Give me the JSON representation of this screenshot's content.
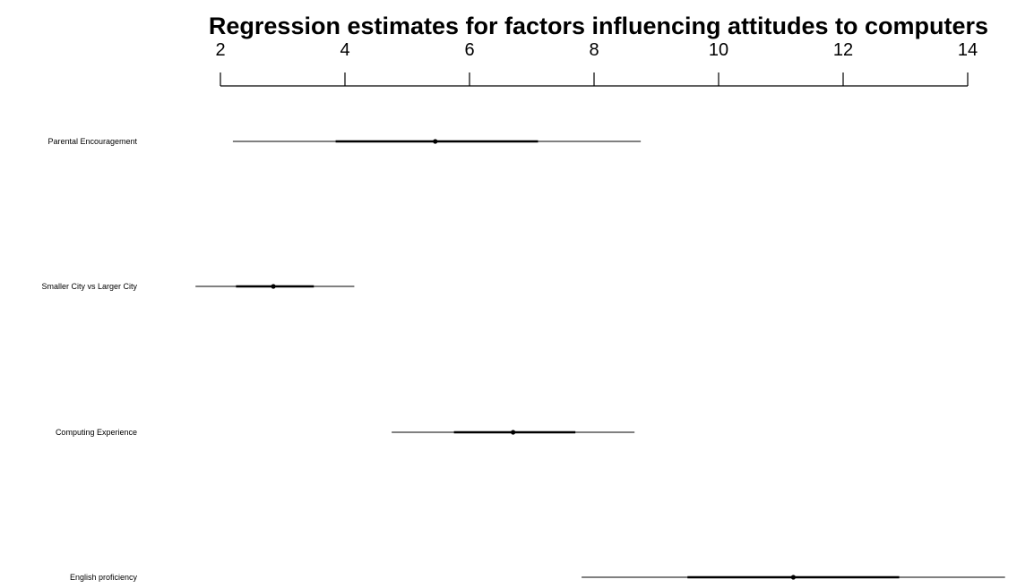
{
  "chart_data": {
    "type": "coefficient-plot",
    "title": "Regression estimates for factors influencing attitudes to computers",
    "xlabel": "",
    "ylabel": "",
    "xlim": [
      2,
      14
    ],
    "x_ticks": [
      2,
      4,
      6,
      8,
      10,
      12,
      14
    ],
    "x_tick_labels": [
      "2",
      "4",
      "6",
      "8",
      "10",
      "12",
      "14"
    ],
    "axis_position": "top",
    "grid": false,
    "legend": "none",
    "series": [
      {
        "label": "Parental Encouragement",
        "estimate": 5.45,
        "inner_ci": [
          3.85,
          7.1
        ],
        "outer_ci": [
          2.2,
          8.75
        ]
      },
      {
        "label": "Smaller City vs Larger City",
        "estimate": 2.85,
        "inner_ci": [
          2.25,
          3.5
        ],
        "outer_ci": [
          1.6,
          4.15
        ]
      },
      {
        "label": "Computing Experience",
        "estimate": 6.7,
        "inner_ci": [
          5.75,
          7.7
        ],
        "outer_ci": [
          4.75,
          8.65
        ]
      },
      {
        "label": "English proficiency",
        "estimate": 11.2,
        "inner_ci": [
          9.5,
          12.9
        ],
        "outer_ci": [
          7.8,
          14.6
        ]
      }
    ],
    "colors": {
      "ink": "#000000",
      "background": "#ffffff"
    }
  }
}
